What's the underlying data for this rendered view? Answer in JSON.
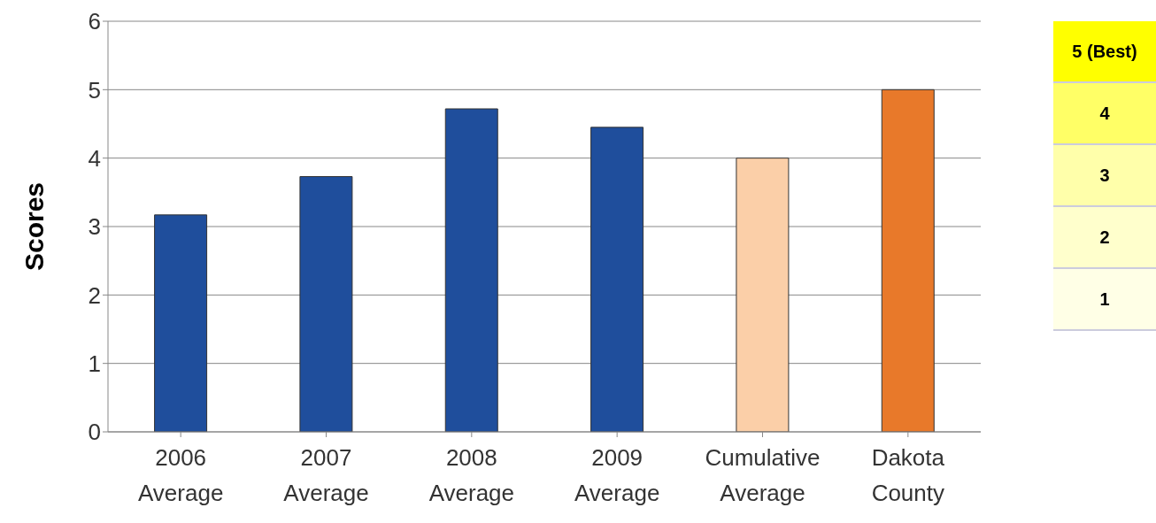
{
  "chart_data": {
    "type": "bar",
    "ylabel": "Scores",
    "categories": [
      "2006 Average",
      "2007 Average",
      "2008 Average",
      "2009 Average",
      "Cumulative Average",
      "Dakota County"
    ],
    "values": [
      3.17,
      3.73,
      4.72,
      4.45,
      4.0,
      5.0
    ],
    "colors": [
      "#1f4e9c",
      "#1f4e9c",
      "#1f4e9c",
      "#1f4e9c",
      "#fbcfa8",
      "#e8792a"
    ],
    "ylim": [
      0,
      6
    ],
    "yticks": [
      0,
      1,
      2,
      3,
      4,
      5,
      6
    ],
    "grid": "y",
    "annotations": [
      "5 (Best)",
      "4",
      "3",
      "2",
      "1"
    ]
  }
}
